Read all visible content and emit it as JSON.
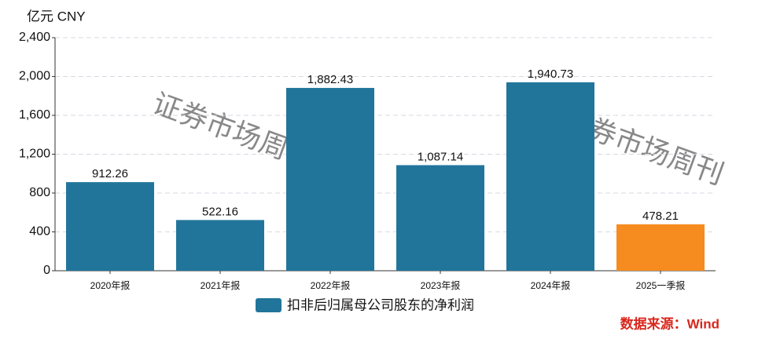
{
  "chart_data": {
    "type": "bar",
    "unit_label": "亿元  CNY",
    "categories": [
      "2020年报",
      "2021年报",
      "2022年报",
      "2023年报",
      "2024年报",
      "2025一季报"
    ],
    "series": [
      {
        "name": "扣非后归属母公司股东的净利润",
        "color": "#21759b",
        "values": [
          912.26,
          522.16,
          1882.43,
          1087.14,
          1940.73,
          478.21
        ],
        "value_labels": [
          "912.26",
          "522.16",
          "1,882.43",
          "1,087.14",
          "1,940.73",
          "478.21"
        ],
        "bar_colors": [
          "#21759b",
          "#21759b",
          "#21759b",
          "#21759b",
          "#21759b",
          "#f68b1f"
        ]
      }
    ],
    "ylim": [
      0,
      2400
    ],
    "yticks": [
      0,
      400,
      800,
      {
        "value": 1200,
        "label": "1,200"
      },
      {
        "value": 1600,
        "label": "1,600"
      },
      {
        "value": 2000,
        "label": "2,000"
      },
      {
        "value": 2400,
        "label": "2,400"
      }
    ],
    "grid": true,
    "legend": "bottom",
    "source": "数据来源：Wind",
    "watermark": "证券市场周刊"
  }
}
